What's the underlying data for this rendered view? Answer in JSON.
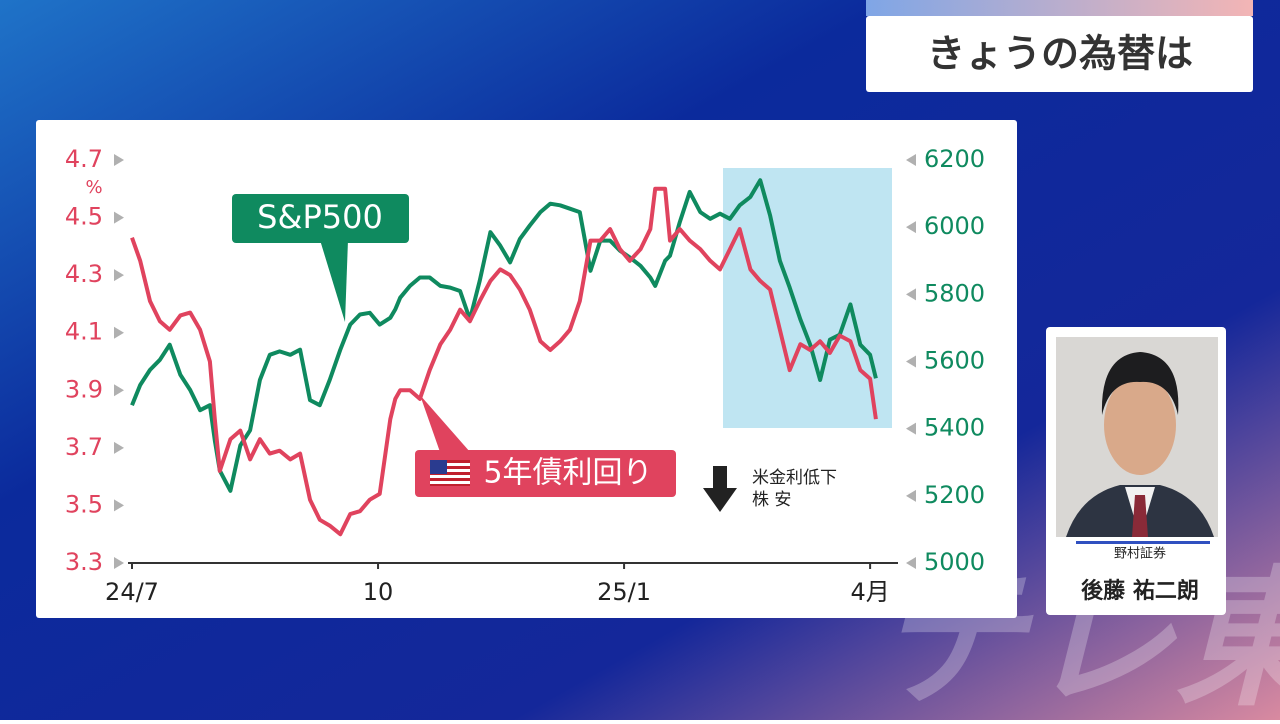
{
  "header": {
    "title": "きょうの為替は"
  },
  "guest": {
    "company": "野村証券",
    "name": "後藤 祐二朗"
  },
  "watermark": "テレ東",
  "chart_data": {
    "type": "line",
    "y_unit": "%",
    "annotation": [
      "米金利低下",
      "株 安"
    ],
    "x": [
      0,
      0.1,
      0.22,
      0.34,
      0.46,
      0.59,
      0.71,
      0.83,
      0.95,
      1.01,
      1.07,
      1.2,
      1.32,
      1.44,
      1.56,
      1.68,
      1.8,
      1.93,
      2.05,
      2.17,
      2.29,
      2.41,
      2.54,
      2.66,
      2.78,
      2.9,
      3.02,
      3.15,
      3.21,
      3.27,
      3.39,
      3.51,
      3.63,
      3.76,
      3.88,
      4,
      4.12,
      4.24,
      4.37,
      4.49,
      4.61,
      4.73,
      4.85,
      4.98,
      5.1,
      5.22,
      5.34,
      5.46,
      5.59,
      5.71,
      5.83,
      5.95,
      6.07,
      6.2,
      6.32,
      6.38,
      6.5,
      6.56,
      6.68,
      6.8,
      6.93,
      7.05,
      7.17,
      7.29,
      7.41,
      7.54,
      7.66,
      7.78,
      7.9,
      8.02,
      8.15,
      8.27,
      8.39,
      8.51,
      8.63,
      8.76,
      8.88,
      9,
      9.07
    ],
    "xlim": [
      0,
      9.34
    ],
    "xticks": [
      {
        "value": 0,
        "label": "24/7"
      },
      {
        "value": 3,
        "label": "10"
      },
      {
        "value": 6,
        "label": "25/1"
      },
      {
        "value": 9,
        "label": "4月"
      }
    ],
    "ylim": [
      3.3,
      4.7
    ],
    "yticks": [
      3.3,
      3.5,
      3.7,
      3.9,
      4.1,
      4.3,
      4.5,
      4.7
    ],
    "y2lim": [
      5000,
      6200
    ],
    "y2ticks": [
      5000,
      5200,
      5400,
      5600,
      5800,
      6000,
      6200
    ],
    "series": [
      {
        "name": "5年債利回り",
        "color": "#e0435e",
        "axis": "y",
        "values": [
          4.43,
          4.35,
          4.21,
          4.14,
          4.11,
          4.16,
          4.17,
          4.11,
          4.0,
          3.8,
          3.62,
          3.73,
          3.76,
          3.66,
          3.73,
          3.68,
          3.69,
          3.66,
          3.68,
          3.52,
          3.45,
          3.43,
          3.4,
          3.47,
          3.48,
          3.52,
          3.54,
          3.8,
          3.87,
          3.9,
          3.9,
          3.87,
          3.97,
          4.06,
          4.11,
          4.18,
          4.14,
          4.21,
          4.28,
          4.32,
          4.3,
          4.25,
          4.18,
          4.07,
          4.04,
          4.07,
          4.11,
          4.21,
          4.42,
          4.42,
          4.46,
          4.39,
          4.35,
          4.39,
          4.46,
          4.6,
          4.6,
          4.42,
          4.46,
          4.42,
          4.39,
          4.35,
          4.32,
          4.39,
          4.46,
          4.32,
          4.28,
          4.25,
          4.11,
          3.97,
          4.06,
          4.04,
          4.07,
          4.03,
          4.09,
          4.07,
          3.97,
          3.94,
          3.8
        ]
      },
      {
        "name": "S&P500",
        "color": "#0f8a5f",
        "axis": "y2",
        "values": [
          5470,
          5530,
          5575,
          5605,
          5650,
          5560,
          5515,
          5455,
          5470,
          5365,
          5275,
          5215,
          5350,
          5395,
          5545,
          5620,
          5630,
          5620,
          5635,
          5485,
          5470,
          5545,
          5635,
          5710,
          5740,
          5745,
          5710,
          5730,
          5755,
          5790,
          5825,
          5850,
          5850,
          5825,
          5820,
          5810,
          5725,
          5840,
          5985,
          5945,
          5895,
          5965,
          6005,
          6045,
          6070,
          6065,
          6055,
          6045,
          5870,
          5960,
          5960,
          5930,
          5910,
          5885,
          5850,
          5825,
          5900,
          5915,
          6015,
          6105,
          6045,
          6025,
          6040,
          6025,
          6065,
          6090,
          6140,
          6035,
          5900,
          5820,
          5725,
          5650,
          5545,
          5665,
          5680,
          5770,
          5650,
          5620,
          5550
        ]
      }
    ]
  }
}
